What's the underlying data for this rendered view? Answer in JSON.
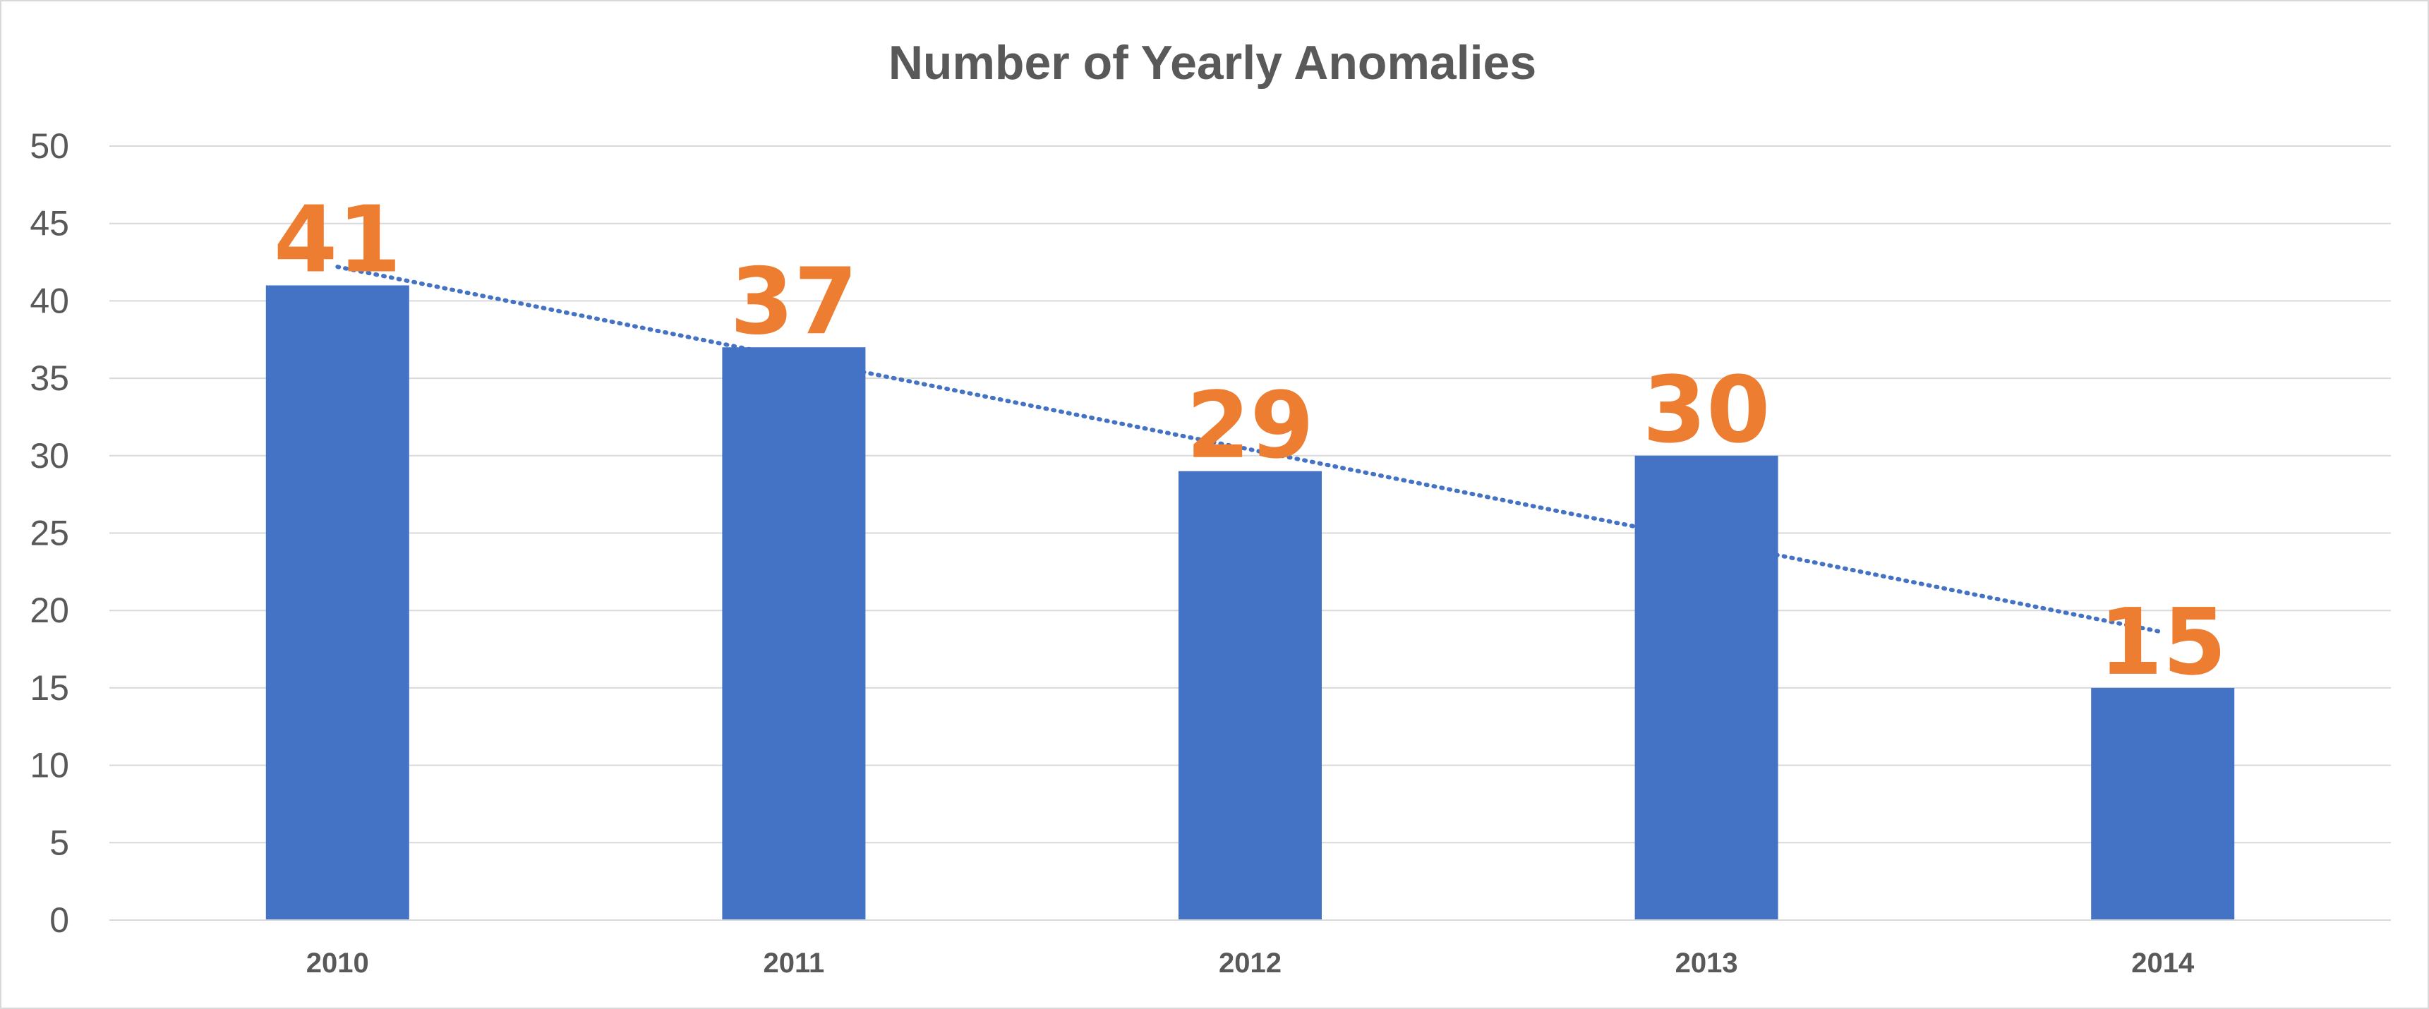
{
  "chart_data": {
    "type": "bar",
    "title": "Number of Yearly Anomalies",
    "categories": [
      "2010",
      "2011",
      "2012",
      "2013",
      "2014"
    ],
    "values": [
      41,
      37,
      29,
      30,
      15
    ],
    "data_labels": [
      "41",
      "37",
      "29",
      "30",
      "15"
    ],
    "xlabel": "",
    "ylabel": "",
    "ylim": [
      0,
      50
    ],
    "yticks": [
      "0",
      "5",
      "10",
      "15",
      "20",
      "25",
      "30",
      "35",
      "40",
      "45",
      "50"
    ],
    "grid": true,
    "legend": "none",
    "trendline": {
      "type": "linear",
      "style": "dotted"
    },
    "colors": {
      "bar": "#4472c4",
      "data_label": "#ed7d31",
      "trendline": "#4472c4",
      "gridline": "#d9d9d9",
      "title": "#595959",
      "tick": "#595959"
    }
  }
}
